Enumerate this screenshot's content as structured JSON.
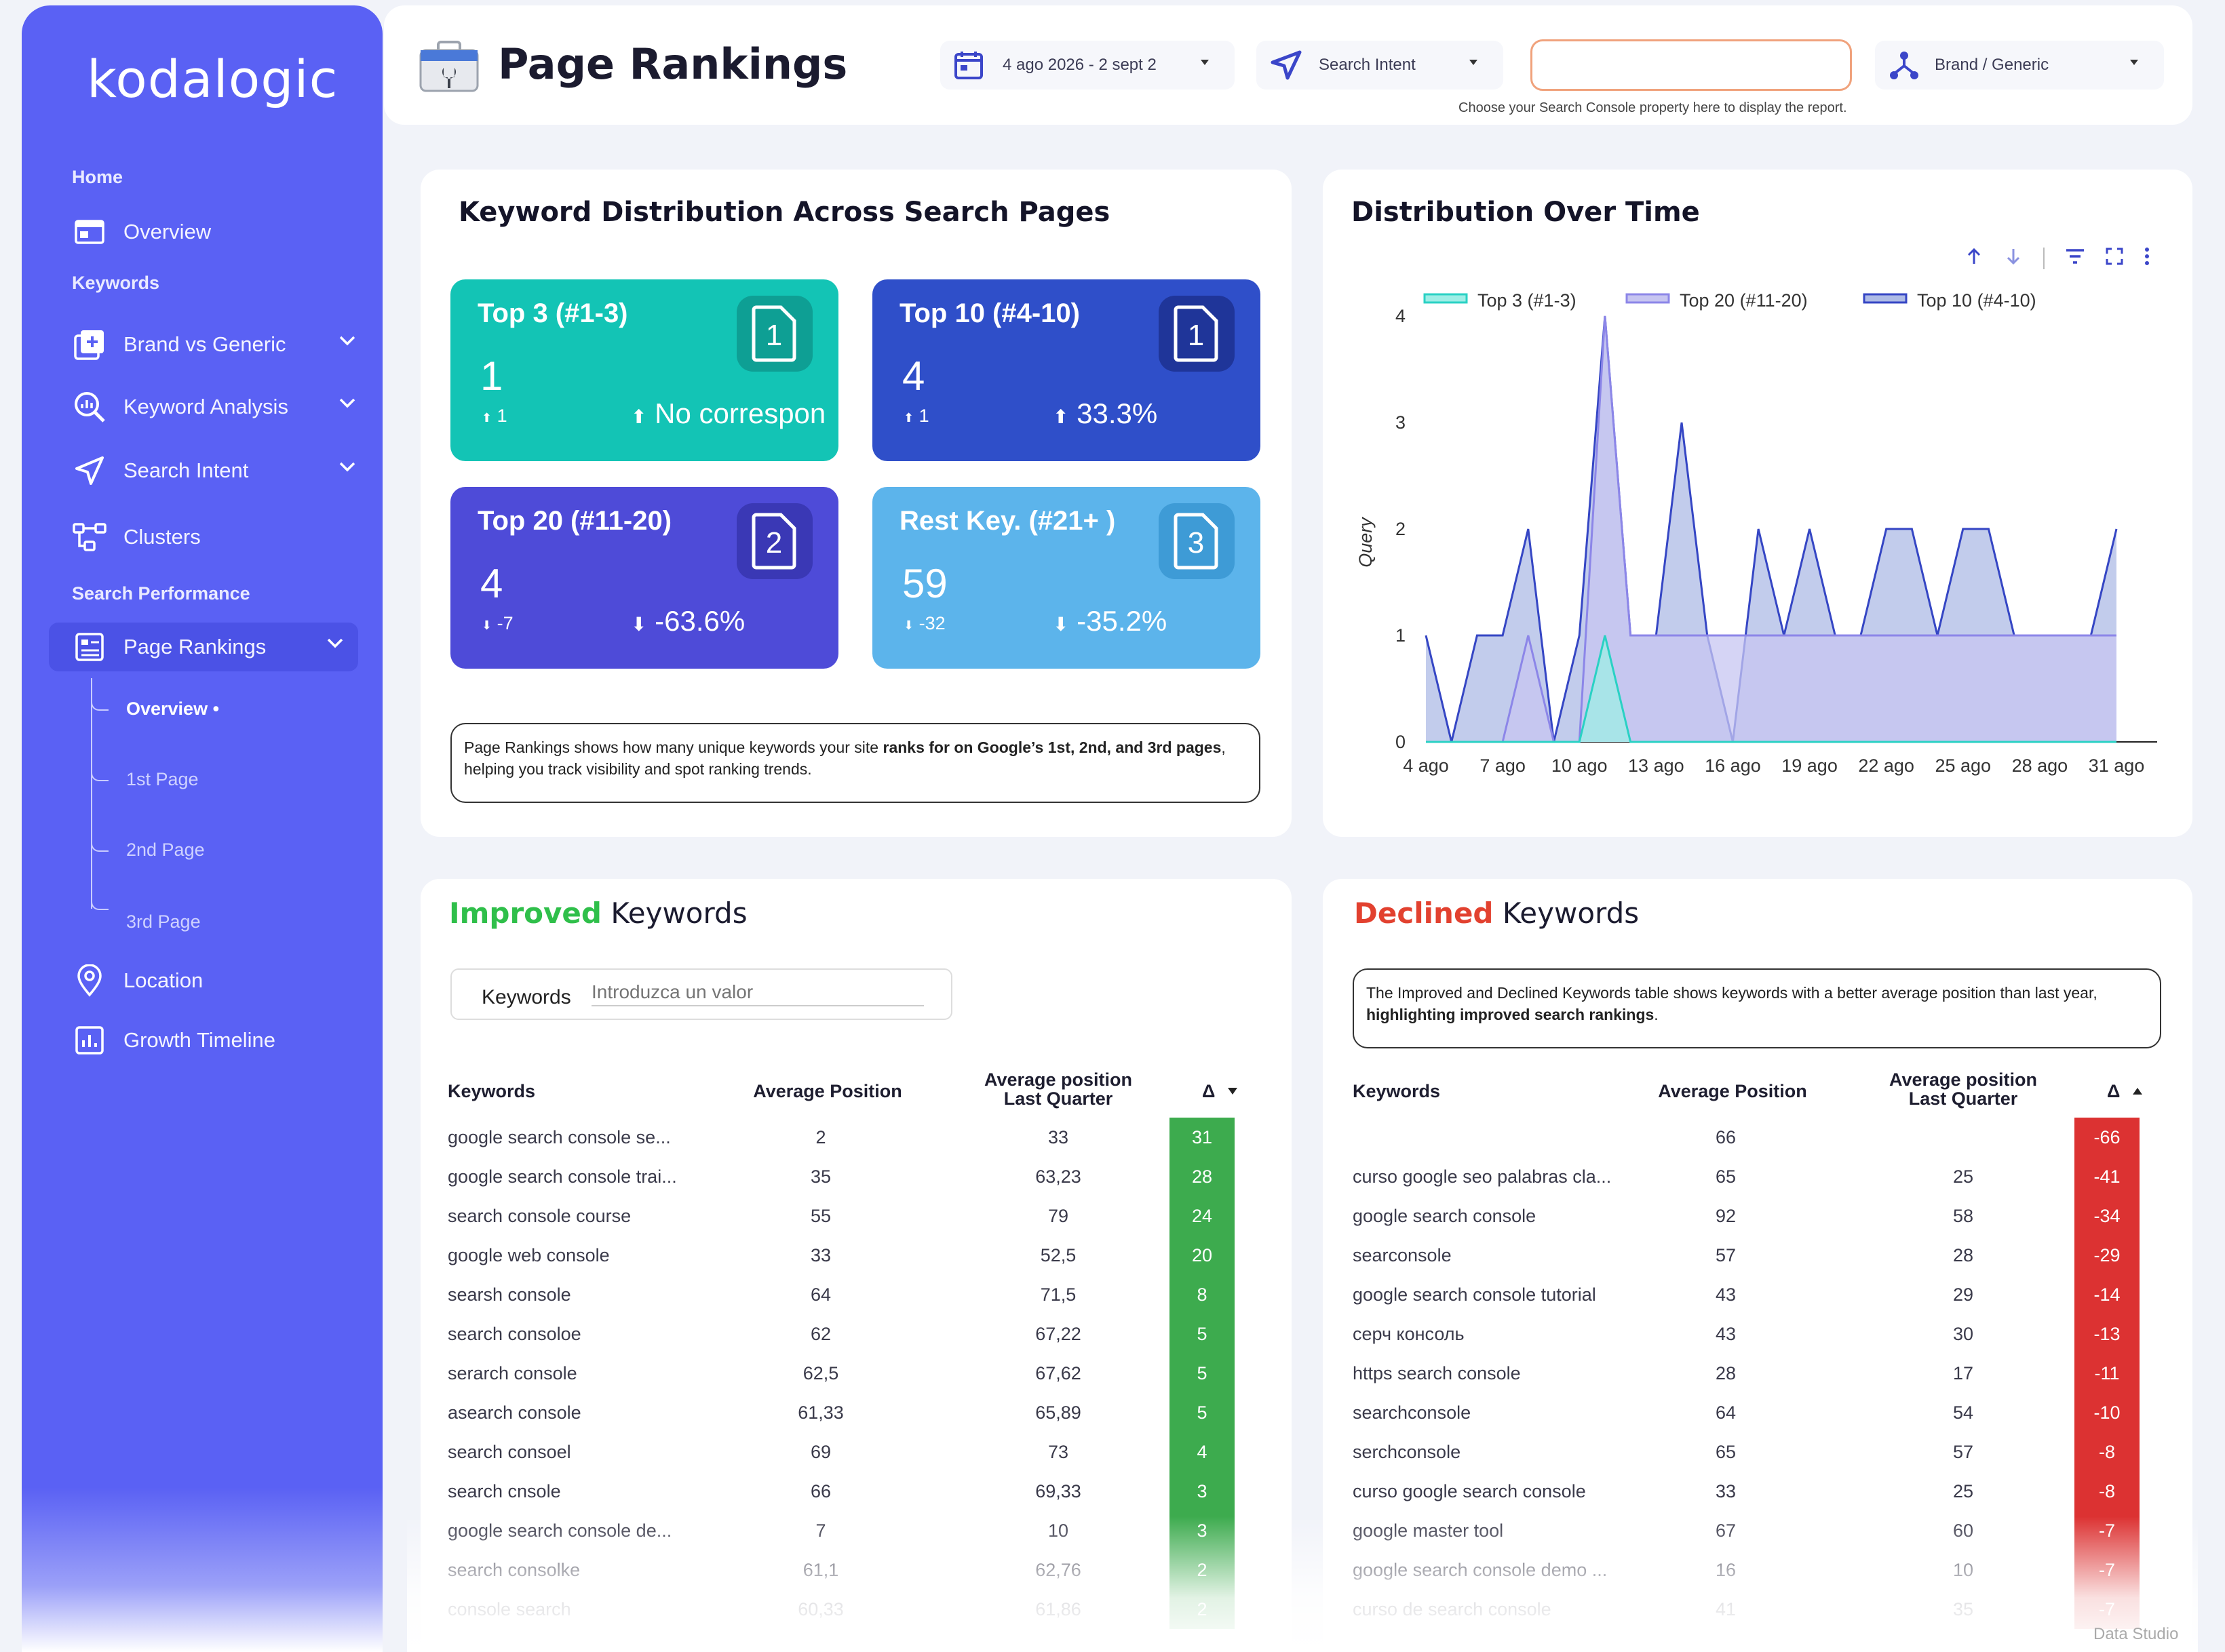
{
  "sidebar": {
    "logo": "kodalogic",
    "sections": {
      "home": "Home",
      "keywords": "Keywords",
      "search_performance": "Search Performance"
    },
    "items": {
      "overview": "Overview",
      "brand_vs_generic": "Brand vs Generic",
      "keyword_analysis": "Keyword Analysis",
      "search_intent": "Search Intent",
      "clusters": "Clusters",
      "page_rankings": "Page Rankings",
      "location": "Location",
      "growth_timeline": "Growth Timeline"
    },
    "sub_items": [
      "Overview •",
      "1st Page",
      "2nd Page",
      "3rd Page"
    ]
  },
  "header": {
    "title": "Page Rankings",
    "date_range": "4 ago 2026 - 2 sept 2",
    "search_intent": "Search Intent",
    "brand_generic": "Brand / Generic",
    "property_note": "Choose your Search Console property here to display the report."
  },
  "distribution": {
    "title": "Keyword Distribution Across Search Pages",
    "tiles": [
      {
        "label": "Top 3 (#1-3)",
        "value": "1",
        "delta": "1",
        "pct": "No correspon",
        "badge": "1",
        "color": "#13c4b5",
        "badge_bg": "#0e9f94",
        "dir": "up"
      },
      {
        "label": "Top 10 (#4-10)",
        "value": "4",
        "delta": "1",
        "pct": "33.3%",
        "badge": "1",
        "color": "#2f4fc9",
        "badge_bg": "#1f3599",
        "dir": "up"
      },
      {
        "label": "Top 20 (#11-20)",
        "value": "4",
        "delta": "-7",
        "pct": "-63.6%",
        "badge": "2",
        "color": "#4e4bd8",
        "badge_bg": "#3a38b5",
        "dir": "down"
      },
      {
        "label": "Rest Key. (#21+ )",
        "value": "59",
        "delta": "-32",
        "pct": "-35.2%",
        "badge": "3",
        "color": "#5cb4eb",
        "badge_bg": "#3e9bd6",
        "dir": "down"
      }
    ],
    "note_pre": "Page Rankings shows how many unique keywords your site ",
    "note_bold1": "ranks for on Google’s 1st, 2nd, and 3rd pages",
    "note_post": ", helping you track visibility and spot ranking trends."
  },
  "time_chart": {
    "title": "Distribution Over Time",
    "ylabel": "Query"
  },
  "chart_data": {
    "type": "area",
    "title": "Distribution Over Time",
    "ylabel": "Query",
    "ylim": [
      0,
      4
    ],
    "yticks": [
      "0",
      "1",
      "2",
      "3",
      "4"
    ],
    "x_ticks": [
      "4 ago",
      "7 ago",
      "10 ago",
      "13 ago",
      "16 ago",
      "19 ago",
      "22 ago",
      "25 ago",
      "28 ago",
      "31 ago"
    ],
    "x": [
      4,
      5,
      6,
      7,
      8,
      9,
      10,
      11,
      12,
      13,
      14,
      15,
      16,
      17,
      18,
      19,
      20,
      21,
      22,
      23,
      24,
      25,
      26,
      27,
      28,
      29,
      30,
      31
    ],
    "series": [
      {
        "name": "Top 3 (#1-3)",
        "color": "#2ad1c4",
        "fill": "#9eeee6",
        "values": [
          0,
          0,
          0,
          0,
          0,
          0,
          0,
          1,
          0,
          0,
          0,
          0,
          0,
          0,
          0,
          0,
          0,
          0,
          0,
          0,
          0,
          0,
          0,
          0,
          0,
          0,
          0,
          0
        ]
      },
      {
        "name": "Top 20 (#11-20)",
        "color": "#8c86e8",
        "fill": "#c7c5f1",
        "values": [
          0,
          0,
          0,
          0,
          1,
          0,
          0,
          4,
          1,
          1,
          1,
          1,
          1,
          1,
          1,
          1,
          1,
          1,
          1,
          1,
          1,
          1,
          1,
          1,
          1,
          1,
          1,
          1
        ]
      },
      {
        "name": "Top 10 (#4-10)",
        "color": "#3546c4",
        "fill": "#aebbe6",
        "values": [
          1,
          0,
          1,
          1,
          2,
          0,
          1,
          4,
          1,
          1,
          3,
          1,
          0,
          2,
          1,
          2,
          1,
          1,
          2,
          2,
          1,
          2,
          2,
          1,
          1,
          1,
          1,
          2
        ]
      }
    ],
    "legend": "top"
  },
  "improved": {
    "title_colored": "Improved",
    "title_rest": "Keywords",
    "filter_label": "Keywords",
    "filter_placeholder": "Introduzca un valor",
    "columns": [
      "Keywords",
      "Average Position",
      "Average position Last Quarter",
      "Δ"
    ],
    "rows": [
      [
        "google search console se...",
        "2",
        "33",
        "31"
      ],
      [
        "google search console trai...",
        "35",
        "63,23",
        "28"
      ],
      [
        "search console course",
        "55",
        "79",
        "24"
      ],
      [
        "google web console",
        "33",
        "52,5",
        "20"
      ],
      [
        "searsh console",
        "64",
        "71,5",
        "8"
      ],
      [
        "search consoloe",
        "62",
        "67,22",
        "5"
      ],
      [
        "serarch console",
        "62,5",
        "67,62",
        "5"
      ],
      [
        "asearch console",
        "61,33",
        "65,89",
        "5"
      ],
      [
        "search consoel",
        "69",
        "73",
        "4"
      ],
      [
        "search cnsole",
        "66",
        "69,33",
        "3"
      ],
      [
        "google search console de...",
        "7",
        "10",
        "3"
      ],
      [
        "search consolke",
        "61,1",
        "62,76",
        "2"
      ],
      [
        "console search",
        "60,33",
        "61,86",
        "2"
      ]
    ]
  },
  "declined": {
    "title_colored": "Declined",
    "title_rest": "Keywords",
    "note_pre": "The Improved and Declined Keywords table shows keywords with a better average position than last year, ",
    "note_bold": "highlighting improved search rankings",
    "note_post": ".",
    "columns": [
      "Keywords",
      "Average Position",
      "Average position Last Quarter",
      "Δ"
    ],
    "rows": [
      [
        "",
        "66",
        "",
        "-66"
      ],
      [
        "curso google seo palabras cla...",
        "65",
        "25",
        "-41"
      ],
      [
        "google search console",
        "92",
        "58",
        "-34"
      ],
      [
        "searconsole",
        "57",
        "28",
        "-29"
      ],
      [
        "google search console tutorial",
        "43",
        "29",
        "-14"
      ],
      [
        "серч консоль",
        "43",
        "30",
        "-13"
      ],
      [
        "https search console",
        "28",
        "17",
        "-11"
      ],
      [
        "searchconsole",
        "64",
        "54",
        "-10"
      ],
      [
        "serchconsole",
        "65",
        "57",
        "-8"
      ],
      [
        "curso google search console",
        "33",
        "25",
        "-8"
      ],
      [
        "google master tool",
        "67",
        "60",
        "-7"
      ],
      [
        "google search console demo ...",
        "16",
        "10",
        "-7"
      ],
      [
        "curso de search console",
        "41",
        "35",
        "-7"
      ]
    ]
  },
  "footer": {
    "watermark": "Data Studio"
  }
}
